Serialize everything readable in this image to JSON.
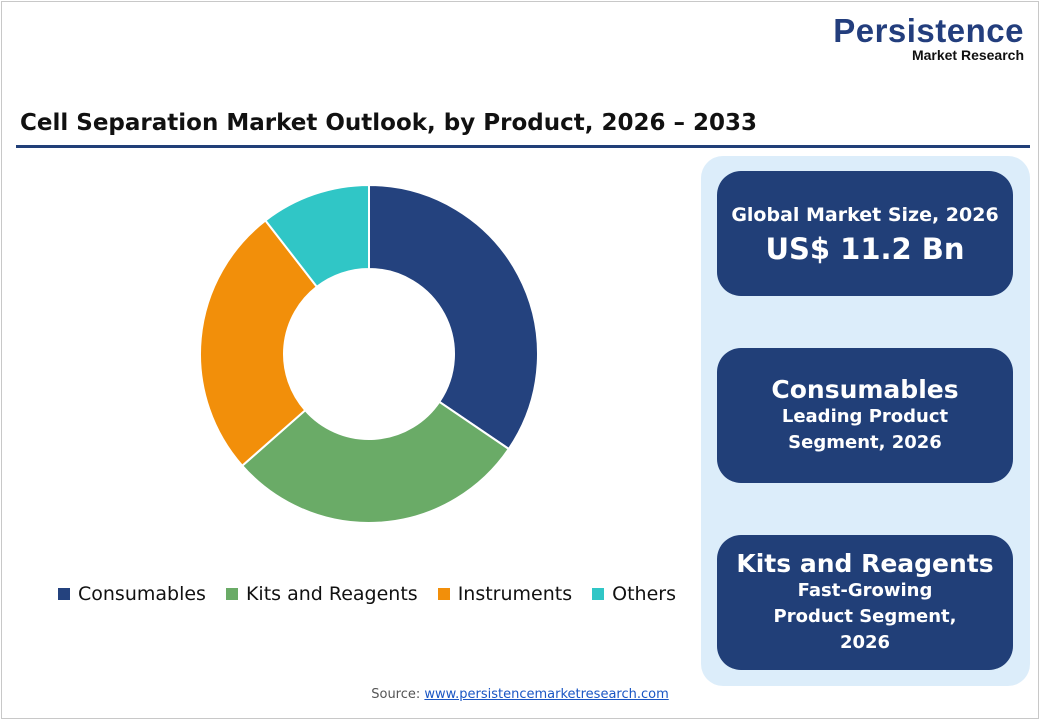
{
  "logo": {
    "main": "Persistence",
    "sub": "Market Research"
  },
  "title": "Cell Separation Market Outlook, by Product, 2026 – 2033",
  "chart_data": {
    "type": "pie",
    "donut": true,
    "title": "Cell Separation Market Outlook, by Product, 2026 – 2033",
    "categories": [
      "Consumables",
      "Kits and Reagents",
      "Instruments",
      "Others"
    ],
    "values": [
      34.5,
      29,
      26,
      10.5
    ],
    "colors": [
      "#24427e",
      "#6aab67",
      "#f28f0a",
      "#30c6c6"
    ],
    "legend": "bottom"
  },
  "cards": [
    {
      "heading": "Global Market Size, 2026",
      "value": "US$ 11.2 Bn"
    },
    {
      "heading": "Consumables",
      "sub": "Leading Product Segment, 2026"
    },
    {
      "heading": "Kits and Reagents",
      "sub": "Fast-Growing Product Segment, 2026"
    }
  ],
  "source": {
    "label": "Source:",
    "link": "www.persistencemarketresearch.com"
  }
}
